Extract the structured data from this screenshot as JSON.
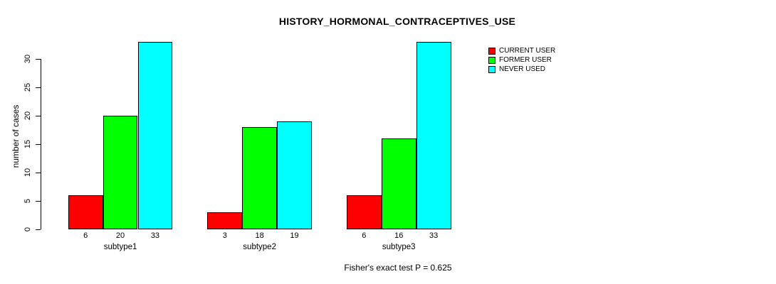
{
  "chart_data": {
    "type": "bar",
    "title": "HISTORY_HORMONAL_CONTRACEPTIVES_USE",
    "categories": [
      "subtype1",
      "subtype2",
      "subtype3"
    ],
    "series": [
      {
        "name": "CURRENT USER",
        "color": "#FF0000",
        "values": [
          6,
          3,
          6
        ]
      },
      {
        "name": "FORMER USER",
        "color": "#00FF00",
        "values": [
          20,
          18,
          16
        ]
      },
      {
        "name": "NEVER USED",
        "color": "#00FFFF",
        "values": [
          33,
          19,
          33
        ]
      }
    ],
    "bar_value_labels": [
      [
        6,
        20,
        33
      ],
      [
        3,
        18,
        19
      ],
      [
        6,
        16,
        33
      ]
    ],
    "xlabel": "",
    "ylabel": "number of cases",
    "ylim": [
      0,
      33
    ],
    "yticks": [
      0,
      5,
      10,
      15,
      20,
      25,
      30
    ],
    "grid": false,
    "legend_position": "right-of-plot-top",
    "annotation": "Fisher's exact test P = 0.625",
    "axis_color": "#000000",
    "background_color": "#FFFFFF"
  }
}
